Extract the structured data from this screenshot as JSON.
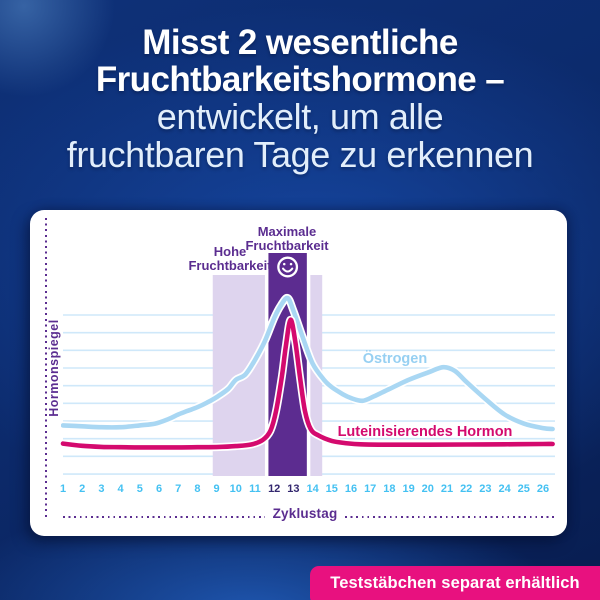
{
  "heading": {
    "bold_line1": "Misst 2 wesentliche",
    "bold_line2": "Fruchtbarkeitshormone –",
    "light_line1": "entwickelt, um alle",
    "light_line2": "fruchtbaren Tage zu erkennen"
  },
  "badge": {
    "label": "Teststäbchen separat erhältlich"
  },
  "colors": {
    "background_blue": "#0c2a6b",
    "accent_pink": "#e8117f",
    "purple_text": "#5b2d90",
    "light_purple_band": "#ded4ee",
    "dark_purple_band": "#5c2c90",
    "estrogen_blue": "#a9d7f3",
    "lh_magenta": "#d40a6e",
    "gridline_blue": "#cfe8fa",
    "tick_blue": "#44c1f2",
    "tick_emphasis_navy": "#33276f"
  },
  "chart_data": {
    "type": "line",
    "title": "",
    "xlabel": "Zyklustag",
    "ylabel": "Hormonspiegel",
    "x_ticks": [
      1,
      2,
      3,
      4,
      5,
      6,
      7,
      8,
      9,
      10,
      11,
      12,
      13,
      14,
      15,
      16,
      17,
      18,
      19,
      20,
      21,
      22,
      23,
      24,
      25,
      26
    ],
    "emphasized_x_ticks": [
      12,
      13
    ],
    "x_range": [
      1,
      26
    ],
    "y_axis_numeric": false,
    "value_scale": "relative hormone level 0-100, estimated from plot",
    "grid": true,
    "legend_position": "inline-labels",
    "bands": [
      {
        "kind": "high-fertility",
        "label_line1": "Hohe",
        "label_line2": "Fruchtbarkeit",
        "from_day": 8.8,
        "to_day": 14.5,
        "color": "#ded4ee"
      },
      {
        "kind": "peak-fertility",
        "label_line1": "Maximale",
        "label_line2": "Fruchtbarkeit",
        "from_day": 11.7,
        "to_day": 13.7,
        "color": "#5c2c90",
        "icon": "smiley-face"
      }
    ],
    "series": [
      {
        "name": "Östrogen",
        "color": "#a9d7f3",
        "points": [
          [
            1,
            30
          ],
          [
            2,
            29.5
          ],
          [
            3,
            29
          ],
          [
            4,
            29
          ],
          [
            5,
            30
          ],
          [
            5.8,
            31
          ],
          [
            6.5,
            33.5
          ],
          [
            7,
            36
          ],
          [
            7.5,
            38
          ],
          [
            8,
            40
          ],
          [
            8.5,
            42.5
          ],
          [
            9,
            45.5
          ],
          [
            9.6,
            50
          ],
          [
            10,
            55
          ],
          [
            10.5,
            58
          ],
          [
            11,
            66
          ],
          [
            11.5,
            76
          ],
          [
            12,
            89
          ],
          [
            12.35,
            96
          ],
          [
            12.7,
            100
          ],
          [
            13,
            93
          ],
          [
            13.5,
            78
          ],
          [
            14,
            64
          ],
          [
            14.6,
            55
          ],
          [
            15,
            51
          ],
          [
            15.6,
            47
          ],
          [
            16,
            45
          ],
          [
            16.6,
            43.5
          ],
          [
            17.2,
            46
          ],
          [
            18,
            50
          ],
          [
            19,
            55
          ],
          [
            20,
            59
          ],
          [
            20.8,
            62
          ],
          [
            21.4,
            60
          ],
          [
            22,
            54
          ],
          [
            23,
            44.5
          ],
          [
            24,
            36
          ],
          [
            25,
            31
          ],
          [
            26,
            28.5
          ],
          [
            26.5,
            28
          ]
        ]
      },
      {
        "name": "Luteinisierendes Hormon",
        "color": "#d40a6e",
        "points": [
          [
            1,
            20
          ],
          [
            2,
            18.8
          ],
          [
            3,
            18.2
          ],
          [
            4,
            18
          ],
          [
            5,
            17.9
          ],
          [
            6,
            17.9
          ],
          [
            7,
            17.9
          ],
          [
            8,
            18
          ],
          [
            9,
            18.1
          ],
          [
            10,
            18.6
          ],
          [
            10.8,
            19.5
          ],
          [
            11.4,
            22
          ],
          [
            11.8,
            27
          ],
          [
            12.1,
            38
          ],
          [
            12.4,
            57
          ],
          [
            12.6,
            73
          ],
          [
            12.85,
            88
          ],
          [
            13.1,
            76
          ],
          [
            13.35,
            56
          ],
          [
            13.6,
            38
          ],
          [
            13.9,
            28
          ],
          [
            14.3,
            24.5
          ],
          [
            15,
            21.5
          ],
          [
            15.7,
            20.3
          ],
          [
            16.5,
            19.6
          ],
          [
            18,
            19.4
          ],
          [
            20,
            19.4
          ],
          [
            22,
            19.5
          ],
          [
            24,
            19.6
          ],
          [
            26,
            19.8
          ],
          [
            26.5,
            19.8
          ]
        ]
      }
    ]
  }
}
